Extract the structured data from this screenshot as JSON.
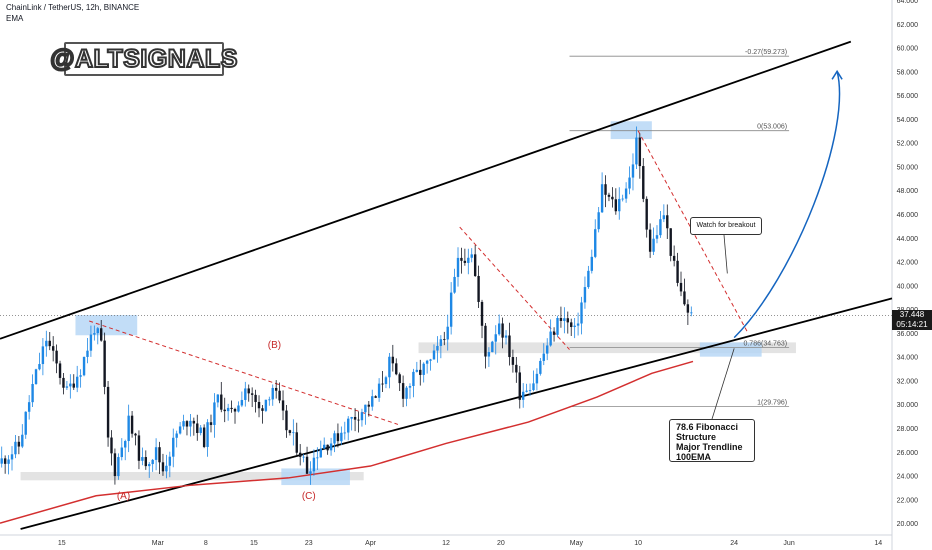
{
  "header": {
    "title": "ChainLink / TetherUS, 12h, BINANCE",
    "indicator": "EMA"
  },
  "logo_text": "@ALTSIGNALS",
  "price_tag": {
    "price": "37.448",
    "countdown": "05:14:21"
  },
  "annotations": {
    "watch": "Watch for breakout",
    "fib_lines": [
      "78.6 Fibonacci",
      "Structure",
      "Major Trendline",
      "100EMA"
    ],
    "wave_labels": [
      "(A)",
      "(B)",
      "(C)"
    ]
  },
  "colors": {
    "up": "#1e88e5",
    "down": "#131722",
    "ema": "#d32f2f",
    "dashed": "#d32f2f",
    "arrow": "#1565c0",
    "zone": "#b3d4f5"
  },
  "chart_data": {
    "type": "candlestick",
    "symbol": "LINK/USDT",
    "timeframe": "12h",
    "y_axis": {
      "min": 19,
      "max": 64,
      "ticks": [
        "64.000",
        "62.000",
        "60.000",
        "58.000",
        "56.000",
        "54.000",
        "52.000",
        "50.000",
        "48.000",
        "46.000",
        "44.000",
        "42.000",
        "40.000",
        "38.000",
        "36.000",
        "34.000",
        "32.000",
        "30.000",
        "28.000",
        "26.000",
        "24.000",
        "22.000",
        "20.000"
      ]
    },
    "x_axis": {
      "start": "2021-02-06",
      "end": "2021-06-16",
      "ticks": [
        {
          "label": "15",
          "date": "2021-02-15"
        },
        {
          "label": "Mar",
          "date": "2021-03-01"
        },
        {
          "label": "8",
          "date": "2021-03-08"
        },
        {
          "label": "15",
          "date": "2021-03-15"
        },
        {
          "label": "23",
          "date": "2021-03-23"
        },
        {
          "label": "Apr",
          "date": "2021-04-01"
        },
        {
          "label": "12",
          "date": "2021-04-12"
        },
        {
          "label": "20",
          "date": "2021-04-20"
        },
        {
          "label": "May",
          "date": "2021-05-01"
        },
        {
          "label": "10",
          "date": "2021-05-10"
        },
        {
          "label": "24",
          "date": "2021-05-24"
        },
        {
          "label": "Jun",
          "date": "2021-06-01"
        },
        {
          "label": "14",
          "date": "2021-06-14"
        }
      ]
    },
    "current_price": 37.448,
    "fib_levels": [
      {
        "label": "-0.27(59.273)",
        "value": 59.273
      },
      {
        "label": "0(53.006)",
        "value": 53.006
      },
      {
        "label": "0.786(34.763)",
        "value": 34.763
      },
      {
        "label": "1(29.796)",
        "value": 29.796
      }
    ],
    "price_path": [
      [
        "2021-02-06",
        25.0
      ],
      [
        "2021-02-09",
        26.5
      ],
      [
        "2021-02-11",
        31.5
      ],
      [
        "2021-02-13",
        35.5
      ],
      [
        "2021-02-14",
        34.0
      ],
      [
        "2021-02-16",
        31.0
      ],
      [
        "2021-02-18",
        33.0
      ],
      [
        "2021-02-20",
        36.5
      ],
      [
        "2021-02-21",
        35.0
      ],
      [
        "2021-02-22",
        27.0
      ],
      [
        "2021-02-23",
        24.5
      ],
      [
        "2021-02-25",
        28.5
      ],
      [
        "2021-02-27",
        25.0
      ],
      [
        "2021-03-01",
        26.0
      ],
      [
        "2021-03-02",
        24.5
      ],
      [
        "2021-03-04",
        27.5
      ],
      [
        "2021-03-06",
        29.0
      ],
      [
        "2021-03-08",
        27.0
      ],
      [
        "2021-03-10",
        30.5
      ],
      [
        "2021-03-12",
        29.0
      ],
      [
        "2021-03-14",
        31.5
      ],
      [
        "2021-03-16",
        29.5
      ],
      [
        "2021-03-18",
        31.5
      ],
      [
        "2021-03-20",
        28.0
      ],
      [
        "2021-03-22",
        26.0
      ],
      [
        "2021-03-23",
        24.5
      ],
      [
        "2021-03-25",
        26.5
      ],
      [
        "2021-03-27",
        27.0
      ],
      [
        "2021-03-29",
        28.5
      ],
      [
        "2021-03-31",
        29.5
      ],
      [
        "2021-04-02",
        30.5
      ],
      [
        "2021-04-04",
        33.5
      ],
      [
        "2021-04-06",
        31.0
      ],
      [
        "2021-04-08",
        32.5
      ],
      [
        "2021-04-10",
        33.5
      ],
      [
        "2021-04-12",
        35.5
      ],
      [
        "2021-04-14",
        42.0
      ],
      [
        "2021-04-16",
        43.0
      ],
      [
        "2021-04-18",
        34.0
      ],
      [
        "2021-04-20",
        37.0
      ],
      [
        "2021-04-22",
        33.5
      ],
      [
        "2021-04-23",
        31.0
      ],
      [
        "2021-04-25",
        32.0
      ],
      [
        "2021-04-27",
        35.0
      ],
      [
        "2021-04-29",
        37.5
      ],
      [
        "2021-05-01",
        36.0
      ],
      [
        "2021-05-03",
        41.0
      ],
      [
        "2021-05-05",
        48.0
      ],
      [
        "2021-05-07",
        46.5
      ],
      [
        "2021-05-09",
        49.0
      ],
      [
        "2021-05-10",
        52.0
      ],
      [
        "2021-05-12",
        43.0
      ],
      [
        "2021-05-14",
        46.0
      ],
      [
        "2021-05-16",
        40.0
      ],
      [
        "2021-05-17",
        38.5
      ],
      [
        "2021-05-18",
        37.4
      ]
    ],
    "ema_100": [
      [
        "2021-02-06",
        20.0
      ],
      [
        "2021-02-20",
        22.3
      ],
      [
        "2021-03-06",
        23.2
      ],
      [
        "2021-03-20",
        23.8
      ],
      [
        "2021-04-01",
        24.8
      ],
      [
        "2021-04-12",
        26.7
      ],
      [
        "2021-04-24",
        28.5
      ],
      [
        "2021-05-04",
        30.6
      ],
      [
        "2021-05-12",
        32.6
      ],
      [
        "2021-05-18",
        33.6
      ]
    ],
    "trendlines": [
      {
        "name": "upper channel",
        "points": [
          [
            "2021-02-06",
            35.5
          ],
          [
            "2021-06-10",
            60.5
          ]
        ],
        "color": "#000000",
        "style": "solid"
      },
      {
        "name": "lower channel",
        "points": [
          [
            "2021-02-09",
            19.5
          ],
          [
            "2021-06-16",
            38.9
          ]
        ],
        "color": "#000000",
        "style": "solid"
      },
      {
        "name": "descending 1",
        "points": [
          [
            "2021-02-19",
            37.0
          ],
          [
            "2021-04-05",
            28.3
          ]
        ],
        "color": "#d32f2f",
        "style": "dashed"
      },
      {
        "name": "descending 2",
        "points": [
          [
            "2021-04-14",
            44.9
          ],
          [
            "2021-04-30",
            34.6
          ]
        ],
        "color": "#d32f2f",
        "style": "dashed"
      },
      {
        "name": "descending 3",
        "points": [
          [
            "2021-05-10",
            53.0
          ],
          [
            "2021-05-26",
            36.0
          ]
        ],
        "color": "#d32f2f",
        "style": "dashed"
      }
    ],
    "support_zones": [
      {
        "from": "2021-02-09",
        "to": "2021-03-31",
        "low": 23.6,
        "high": 24.3
      },
      {
        "from": "2021-04-08",
        "to": "2021-06-02",
        "low": 34.3,
        "high": 35.2
      }
    ],
    "wave_points": [
      {
        "label": "(A)",
        "date": "2021-02-24",
        "value": 22.3
      },
      {
        "label": "(B)",
        "date": "2021-03-18",
        "value": 35.0
      },
      {
        "label": "(C)",
        "date": "2021-03-23",
        "value": 22.3
      }
    ],
    "projection_arrow": [
      [
        "2021-05-24",
        35.6
      ],
      [
        "2021-06-08",
        58.0
      ]
    ],
    "callouts": [
      {
        "text": "Watch for breakout",
        "points_to": [
          "2021-05-23",
          41.0
        ]
      },
      {
        "text": "78.6 Fibonacci Structure Major Trendline 100EMA",
        "points_to": [
          "2021-05-24",
          34.7
        ]
      }
    ]
  }
}
